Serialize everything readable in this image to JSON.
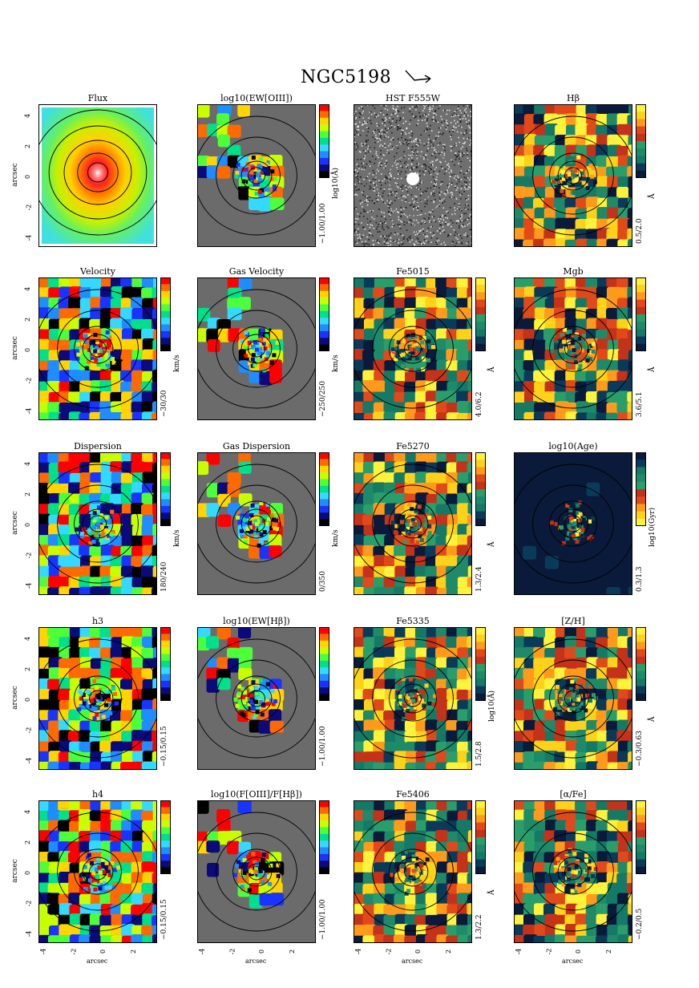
{
  "figure": {
    "title": "NGC5198",
    "north_arrow_icon": "north-east-arrow-icon"
  },
  "axes_common": {
    "xlabel": "arcsec",
    "ylabel": "arcsec",
    "xticks": [
      "-4",
      "-2",
      "0",
      "2"
    ],
    "yticks": [
      "4",
      "2",
      "0",
      "-2",
      "-4"
    ]
  },
  "chart_data": [
    {
      "type": "heatmap",
      "title": "Flux",
      "colormap": "rainbow-radial",
      "cbar_range": "",
      "cbar_unit": ""
    },
    {
      "type": "heatmap",
      "title": "log10(EW[OIII])",
      "colormap": "rainbow",
      "cbar_range": "−1.00/1.00",
      "cbar_unit": "log10(Å)"
    },
    {
      "type": "heatmap",
      "title": "HST F555W",
      "colormap": "gray",
      "cbar_range": "",
      "cbar_unit": ""
    },
    {
      "type": "heatmap",
      "title": "Hβ",
      "colormap": "gold-red-teal",
      "cbar_range": "0.5/2.0",
      "cbar_unit": "Å"
    },
    {
      "type": "heatmap",
      "title": "Velocity",
      "colormap": "rainbow",
      "cbar_range": "−30/30",
      "cbar_unit": "km/s"
    },
    {
      "type": "heatmap",
      "title": "Gas Velocity",
      "colormap": "rainbow",
      "cbar_range": "−250/250",
      "cbar_unit": "km/s"
    },
    {
      "type": "heatmap",
      "title": "Fe5015",
      "colormap": "gold-red-teal",
      "cbar_range": "4.0/6.2",
      "cbar_unit": "Å"
    },
    {
      "type": "heatmap",
      "title": "Mgb",
      "colormap": "gold-red-teal",
      "cbar_range": "3.6/5.1",
      "cbar_unit": "Å"
    },
    {
      "type": "heatmap",
      "title": "Dispersion",
      "colormap": "rainbow",
      "cbar_range": "180/240",
      "cbar_unit": "km/s"
    },
    {
      "type": "heatmap",
      "title": "Gas Dispersion",
      "colormap": "rainbow",
      "cbar_range": "0/350",
      "cbar_unit": "km/s"
    },
    {
      "type": "heatmap",
      "title": "Fe5270",
      "colormap": "gold-red-teal",
      "cbar_range": "1.3/2.4",
      "cbar_unit": "Å"
    },
    {
      "type": "heatmap",
      "title": "log10(Age)",
      "colormap": "gold-red-teal-reversed",
      "cbar_range": "0.3/1.3",
      "cbar_unit": "log10(Gyr)"
    },
    {
      "type": "heatmap",
      "title": "h3",
      "colormap": "rainbow",
      "cbar_range": "−0.15/0.15",
      "cbar_unit": ""
    },
    {
      "type": "heatmap",
      "title": "log10(EW[Hβ])",
      "colormap": "rainbow",
      "cbar_range": "−1.00/1.00",
      "cbar_unit": ""
    },
    {
      "type": "heatmap",
      "title": "Fe5335",
      "colormap": "gold-red-teal",
      "cbar_range": "1.5/2.8",
      "cbar_unit": "log10(Å)"
    },
    {
      "type": "heatmap",
      "title": "[Z/H]",
      "colormap": "gold-red-teal",
      "cbar_range": "−0.3/0.63",
      "cbar_unit": "Å"
    },
    {
      "type": "heatmap",
      "title": "h4",
      "colormap": "rainbow",
      "cbar_range": "−0.15/0.15",
      "cbar_unit": ""
    },
    {
      "type": "heatmap",
      "title": "log10(F[OIII]/F[Hβ])",
      "colormap": "rainbow",
      "cbar_range": "−1.00/1.00",
      "cbar_unit": ""
    },
    {
      "type": "heatmap",
      "title": "Fe5406",
      "colormap": "gold-red-teal",
      "cbar_range": "1.3/2.2",
      "cbar_unit": "Å"
    },
    {
      "type": "heatmap",
      "title": "[α/Fe]",
      "colormap": "gold-red-teal",
      "cbar_range": "−0.2/0.5",
      "cbar_unit": ""
    }
  ],
  "palettes": {
    "rainbow": [
      "#ff0000",
      "#ff6a00",
      "#ffd400",
      "#c8ff00",
      "#4dff3a",
      "#00e08a",
      "#34d9ff",
      "#1f8cff",
      "#1a34ff",
      "#0a0a7a",
      "#000000"
    ],
    "gold-red-teal": [
      "#fff23a",
      "#ffd21a",
      "#ff9a1a",
      "#e04a1a",
      "#c4321a",
      "#2a9e6a",
      "#1e8a6a",
      "#147a66",
      "#0a3a5a",
      "#0a1a3a"
    ],
    "gray": [
      "#ffffff",
      "#bfbfbf",
      "#7f7f7f",
      "#3f3f3f",
      "#000000"
    ],
    "masked": "#6b6b6b"
  }
}
